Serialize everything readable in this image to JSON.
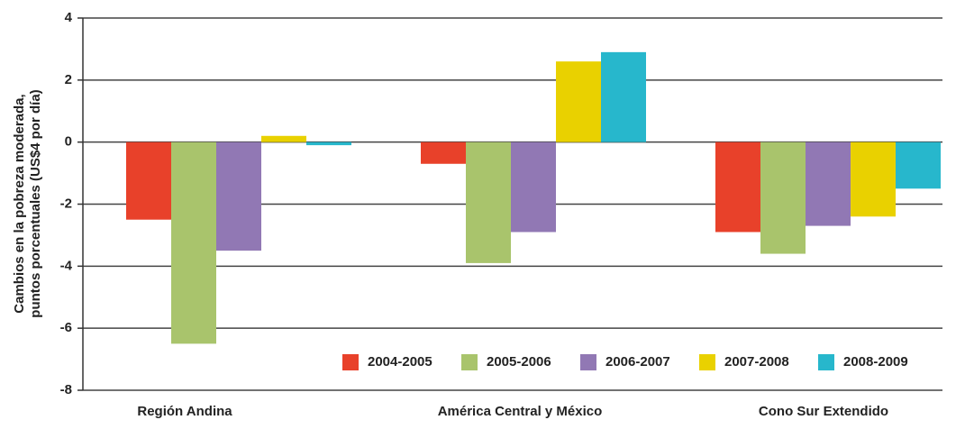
{
  "chart_data": {
    "type": "bar",
    "ylabel": [
      "Cambios en la pobreza moderada,",
      "puntos porcentuales (US$4 por día)"
    ],
    "categories": [
      "Región Andina",
      "América Central y México",
      "Cono Sur Extendido"
    ],
    "series": [
      {
        "name": "2004-2005",
        "color": "#e8412a",
        "values": [
          -2.5,
          -0.7,
          -2.9
        ]
      },
      {
        "name": "2005-2006",
        "color": "#a9c46c",
        "values": [
          -6.5,
          -3.9,
          -3.6
        ]
      },
      {
        "name": "2006-2007",
        "color": "#9178b4",
        "values": [
          -3.5,
          -2.9,
          -2.7
        ]
      },
      {
        "name": "2007-2008",
        "color": "#e9d100",
        "values": [
          0.2,
          2.6,
          -2.4
        ]
      },
      {
        "name": "2008-2009",
        "color": "#27b7cc",
        "values": [
          -0.1,
          2.9,
          -1.5
        ]
      }
    ],
    "ylim": [
      -8,
      4
    ],
    "yticks": [
      -8,
      -6,
      -4,
      -2,
      0,
      2,
      4
    ],
    "grid": true,
    "legend": "bottom-right"
  }
}
